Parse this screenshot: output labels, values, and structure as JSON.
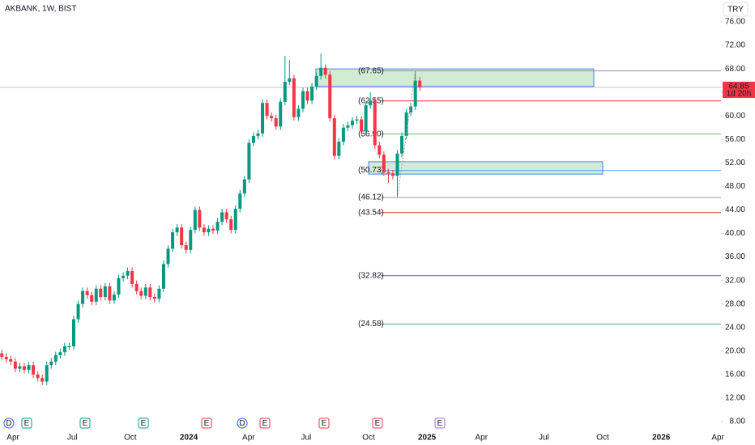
{
  "chart_data": {
    "type": "candlestick",
    "title": "AKBANK, 1W, BIST",
    "currency": "TRY",
    "up_color": "#089981",
    "down_color": "#f23645",
    "open": [
      19.6,
      19.0,
      18.6,
      18.2,
      17.0,
      17.4,
      16.8,
      17.6,
      16.0,
      15.4,
      14.8,
      17.6,
      18.2,
      19.3,
      19.8,
      20.8,
      20.8,
      25.4,
      28.0,
      30.2,
      29.5,
      28.4,
      30.6,
      29.2,
      31.0,
      28.6,
      29.6,
      32.4,
      32.8,
      33.6,
      31.4,
      30.2,
      29.4,
      30.8,
      29.2,
      28.9,
      30.6,
      34.8,
      37.4,
      40.2,
      41.0,
      38.0,
      37.2,
      40.6,
      44.0,
      41.0,
      40.2,
      40.8,
      40.5,
      42.0,
      43.6,
      42.4,
      40.6,
      44.2,
      46.8,
      49.2,
      55.4,
      56.6,
      57.0,
      62.2,
      60.0,
      59.6,
      58.2,
      62.4,
      65.8,
      66.4,
      59.8,
      61.2,
      64.2,
      62.6,
      65.0,
      66.8,
      68.2,
      67.0,
      59.6,
      53.2,
      55.6,
      58.0,
      58.4,
      59.2,
      59.4,
      57.4,
      61.8,
      62.6,
      55.0,
      53.4,
      50.4,
      50.2,
      49.8,
      53.6,
      56.6,
      60.6,
      61.6,
      66.0
    ],
    "high": [
      20.2,
      19.6,
      19.2,
      18.8,
      18.0,
      18.0,
      18.2,
      18.2,
      16.6,
      16.0,
      18.2,
      18.8,
      19.9,
      20.4,
      21.4,
      21.4,
      26.0,
      28.6,
      30.8,
      30.8,
      30.1,
      31.2,
      31.2,
      31.6,
      31.6,
      30.2,
      33.0,
      33.4,
      34.2,
      34.2,
      32.0,
      30.8,
      31.4,
      31.4,
      29.8,
      31.2,
      35.4,
      38.0,
      40.8,
      41.6,
      41.6,
      38.6,
      41.2,
      44.6,
      44.6,
      41.6,
      41.4,
      41.4,
      42.6,
      44.2,
      44.2,
      43.0,
      44.8,
      47.4,
      49.8,
      56.0,
      57.2,
      57.6,
      62.8,
      62.8,
      60.6,
      60.2,
      63.0,
      70.2,
      69.5,
      67.0,
      61.8,
      64.8,
      64.8,
      65.6,
      67.4,
      70.6,
      68.8,
      67.6,
      60.2,
      56.2,
      58.6,
      59.0,
      59.8,
      60.0,
      60.0,
      62.4,
      64.0,
      63.2,
      55.6,
      54.0,
      51.0,
      50.8,
      54.2,
      57.2,
      61.2,
      62.2,
      67.65,
      66.6
    ],
    "low": [
      18.4,
      18.0,
      17.6,
      16.4,
      16.4,
      16.2,
      16.2,
      15.4,
      14.8,
      14.2,
      14.2,
      17.0,
      17.6,
      18.7,
      19.2,
      20.2,
      20.2,
      24.8,
      27.4,
      28.9,
      27.8,
      27.8,
      28.6,
      28.6,
      28.0,
      28.0,
      29.0,
      31.8,
      32.2,
      30.8,
      29.6,
      28.8,
      28.8,
      28.6,
      28.3,
      28.3,
      30.0,
      34.2,
      36.8,
      39.6,
      37.4,
      36.6,
      36.6,
      40.0,
      40.4,
      39.6,
      39.6,
      39.9,
      39.9,
      41.4,
      41.8,
      40.0,
      40.0,
      43.6,
      46.2,
      48.6,
      54.8,
      56.0,
      56.4,
      59.4,
      59.0,
      57.6,
      57.6,
      61.8,
      65.2,
      59.2,
      59.2,
      60.6,
      62.0,
      62.0,
      64.4,
      66.2,
      66.4,
      59.0,
      52.6,
      52.6,
      55.0,
      57.4,
      57.8,
      58.6,
      56.8,
      56.8,
      61.2,
      54.4,
      52.8,
      49.8,
      48.6,
      49.2,
      46.12,
      53.0,
      56.0,
      60.0,
      61.0,
      64.2
    ],
    "close": [
      19.0,
      18.6,
      18.2,
      17.0,
      17.4,
      16.8,
      17.6,
      16.0,
      15.4,
      14.8,
      17.6,
      18.2,
      19.3,
      19.8,
      20.8,
      20.8,
      25.4,
      28.0,
      30.2,
      29.5,
      28.4,
      30.6,
      29.2,
      31.0,
      28.6,
      29.6,
      32.4,
      32.8,
      33.6,
      31.4,
      30.2,
      29.4,
      30.8,
      29.2,
      28.9,
      30.6,
      34.8,
      37.4,
      40.2,
      41.0,
      38.0,
      37.2,
      40.6,
      44.0,
      41.0,
      40.2,
      40.8,
      40.5,
      42.0,
      43.6,
      42.4,
      40.6,
      44.2,
      46.8,
      49.2,
      55.4,
      56.6,
      57.0,
      62.2,
      60.0,
      59.6,
      58.2,
      62.4,
      65.8,
      66.4,
      59.8,
      61.2,
      64.2,
      62.6,
      65.0,
      66.8,
      68.2,
      67.0,
      59.6,
      53.2,
      55.6,
      58.0,
      58.4,
      59.2,
      59.4,
      57.4,
      61.8,
      62.6,
      55.0,
      53.4,
      50.4,
      50.2,
      49.8,
      53.6,
      56.6,
      60.6,
      61.6,
      66.0,
      64.85
    ],
    "ylim": [
      8,
      76
    ],
    "yticks": [
      {
        "value": 8,
        "label": "8.00"
      },
      {
        "value": 12,
        "label": "12.00"
      },
      {
        "value": 16,
        "label": "16.00"
      },
      {
        "value": 20,
        "label": "20.00"
      },
      {
        "value": 24,
        "label": "24.00"
      },
      {
        "value": 28,
        "label": "28.00"
      },
      {
        "value": 32,
        "label": "32.00"
      },
      {
        "value": 36,
        "label": "36.00"
      },
      {
        "value": 40,
        "label": "40.00"
      },
      {
        "value": 44,
        "label": "44.00"
      },
      {
        "value": 48,
        "label": "48.00"
      },
      {
        "value": 52,
        "label": "52.00"
      },
      {
        "value": 56,
        "label": "56.00"
      },
      {
        "value": 60,
        "label": "60.00"
      },
      {
        "value": 64,
        "label": "64.00"
      },
      {
        "value": 68,
        "label": "68.00"
      },
      {
        "value": 72,
        "label": "72.00"
      },
      {
        "value": 76,
        "label": "76.00"
      }
    ],
    "xlim": [
      -0.4,
      160
    ],
    "xticks": [
      {
        "value": 2.5,
        "label": "Apr"
      },
      {
        "value": 15.7,
        "label": "Jul"
      },
      {
        "value": 28.6,
        "label": "Oct"
      },
      {
        "value": 41.6,
        "label": "2024"
      },
      {
        "value": 54.9,
        "label": "Apr"
      },
      {
        "value": 67.7,
        "label": "Jul"
      },
      {
        "value": 81.6,
        "label": "Oct"
      },
      {
        "value": 94.6,
        "label": "2025"
      },
      {
        "value": 106.7,
        "label": "Apr"
      },
      {
        "value": 120.6,
        "label": "Jul"
      },
      {
        "value": 133.7,
        "label": "Oct"
      },
      {
        "value": 146.7,
        "label": "2026"
      },
      {
        "value": 159.3,
        "label": "Apr"
      }
    ],
    "last_price": 64.85,
    "countdown": "1d 20h",
    "levels": [
      {
        "value": 67.65,
        "label": "(67.65)",
        "color": "#9598a1"
      },
      {
        "value": 62.55,
        "label": "(62.55)",
        "color": "#f23645"
      },
      {
        "value": 56.9,
        "label": "(56.90)",
        "color": "#66bb6a"
      },
      {
        "value": 50.73,
        "label": "(50.73)",
        "color": "#5b9cf6"
      },
      {
        "value": 46.12,
        "label": "(46.12)",
        "color": "#9598a1"
      },
      {
        "value": 43.54,
        "label": "(43.54)",
        "color": "#f23645"
      },
      {
        "value": 32.82,
        "label": "(32.82)",
        "color": "#5b5bd6"
      },
      {
        "value": 24.58,
        "label": "(24.58)",
        "color": "#4caf7a"
      }
    ],
    "zones": [
      {
        "low": 65.0,
        "high": 68.0
      },
      {
        "low": 50.1,
        "high": 52.2
      }
    ],
    "events": [
      {
        "label": "D",
        "color": "#2962ff"
      },
      {
        "label": "E",
        "color": "#089981"
      },
      {
        "label": "E",
        "color": "#089981"
      },
      {
        "label": "E",
        "color": "#089981"
      },
      {
        "label": "E",
        "color": "#f23645"
      },
      {
        "label": "D",
        "color": "#2962ff"
      },
      {
        "label": "E",
        "color": "#f23645"
      },
      {
        "label": "E",
        "color": "#f23645"
      },
      {
        "label": "E",
        "color": "#f23645"
      },
      {
        "label": "E",
        "color": "#9c6ade"
      }
    ]
  }
}
